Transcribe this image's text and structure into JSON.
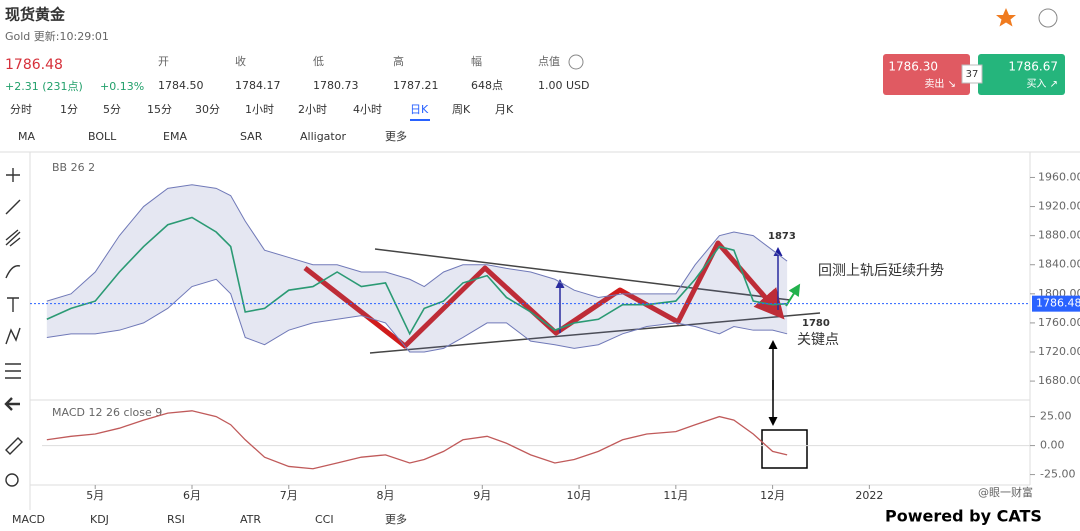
{
  "header": {
    "title": "现货黄金",
    "subtitle": "Gold 更新:10:29:01",
    "price": "1786.48",
    "change": "+2.31 (231点)",
    "change_pct": "+0.13%",
    "stats": [
      {
        "label": "开",
        "value": "1784.50"
      },
      {
        "label": "收",
        "value": "1784.17"
      },
      {
        "label": "低",
        "value": "1780.73"
      },
      {
        "label": "高",
        "value": "1787.21"
      },
      {
        "label": "幅",
        "value": "648点"
      },
      {
        "label": "点值",
        "value": "1.00 USD"
      }
    ],
    "sell": {
      "price": "1786.30",
      "label": "卖出 ↘"
    },
    "spread": "37",
    "buy": {
      "price": "1786.67",
      "label": "买入 ↗"
    }
  },
  "timeframes": [
    "分时",
    "1分",
    "5分",
    "15分",
    "30分",
    "1小时",
    "2小时",
    "4小时",
    "日K",
    "周K",
    "月K"
  ],
  "indicators": [
    "MA",
    "BOLL",
    "EMA",
    "SAR",
    "Alligator",
    "更多"
  ],
  "bottom_indicators": [
    "MACD",
    "KDJ",
    "RSI",
    "ATR",
    "CCI",
    "更多"
  ],
  "footer": {
    "watermark": "@眼一财富",
    "powered": "Powered by CATS"
  },
  "chart_data": {
    "type": "line",
    "label": "BB  26 2",
    "x": [
      4.5,
      4.75,
      5.0,
      5.25,
      5.5,
      5.75,
      6.0,
      6.25,
      6.4,
      6.55,
      6.75,
      7.0,
      7.25,
      7.5,
      7.75,
      8.0,
      8.25,
      8.4,
      8.6,
      8.8,
      9.05,
      9.25,
      9.5,
      9.75,
      9.95,
      10.2,
      10.45,
      10.7,
      11.0,
      11.2,
      11.45,
      11.6,
      11.8,
      12.0,
      12.15
    ],
    "close": [
      1765,
      1780,
      1790,
      1830,
      1865,
      1895,
      1905,
      1885,
      1865,
      1775,
      1780,
      1805,
      1810,
      1830,
      1810,
      1815,
      1745,
      1780,
      1790,
      1815,
      1825,
      1795,
      1775,
      1750,
      1760,
      1765,
      1785,
      1785,
      1790,
      1820,
      1865,
      1860,
      1790,
      1785,
      1786.48
    ],
    "upper": [
      1790,
      1800,
      1830,
      1880,
      1920,
      1945,
      1950,
      1945,
      1935,
      1900,
      1860,
      1850,
      1840,
      1840,
      1830,
      1830,
      1820,
      1810,
      1830,
      1840,
      1840,
      1835,
      1830,
      1820,
      1805,
      1795,
      1800,
      1800,
      1800,
      1840,
      1880,
      1885,
      1880,
      1860,
      1845
    ],
    "lower": [
      1740,
      1745,
      1745,
      1750,
      1760,
      1780,
      1810,
      1820,
      1800,
      1740,
      1730,
      1750,
      1760,
      1765,
      1770,
      1760,
      1720,
      1720,
      1725,
      1740,
      1760,
      1760,
      1735,
      1730,
      1725,
      1730,
      1745,
      1755,
      1760,
      1755,
      1745,
      1755,
      1750,
      1750,
      1745
    ],
    "line_color": "#2b9a74",
    "band_color": "#7079b8",
    "last_price": {
      "value": 1786.48,
      "label": "1786.48"
    },
    "xlim": [
      4.45,
      14.66
    ],
    "ylim": [
      1654,
      1984
    ],
    "xticks": [
      {
        "value": 5,
        "label": "5月"
      },
      {
        "value": 6,
        "label": "6月"
      },
      {
        "value": 7,
        "label": "7月"
      },
      {
        "value": 8,
        "label": "8月"
      },
      {
        "value": 9,
        "label": "9月"
      },
      {
        "value": 10,
        "label": "10月"
      },
      {
        "value": 11,
        "label": "11月"
      },
      {
        "value": 12,
        "label": "12月"
      },
      {
        "value": 13,
        "label": "2022"
      }
    ],
    "yticks": [
      {
        "value": 1960,
        "label": "1960.00"
      },
      {
        "value": 1920,
        "label": "1920.00"
      },
      {
        "value": 1880,
        "label": "1880.00"
      },
      {
        "value": 1840,
        "label": "1840.00"
      },
      {
        "value": 1800,
        "label": "1800.00"
      },
      {
        "value": 1760,
        "label": "1760.00"
      },
      {
        "value": 1720,
        "label": "1720.00"
      },
      {
        "value": 1680,
        "label": "1680.00"
      }
    ],
    "annotations": [
      "1873",
      "回测上轨后延续升势",
      "1780",
      "关键点"
    ],
    "macd": {
      "label": "MACD 12 26 close 9",
      "color": "#c05a5a",
      "values": [
        5,
        8,
        10,
        15,
        22,
        28,
        30,
        25,
        18,
        5,
        -10,
        -18,
        -20,
        -15,
        -10,
        -8,
        -15,
        -12,
        -5,
        5,
        8,
        2,
        -8,
        -15,
        -12,
        -5,
        5,
        10,
        12,
        18,
        25,
        22,
        10,
        -5,
        -8
      ],
      "ylim": [
        -34,
        35
      ],
      "yticks": [
        {
          "value": 25,
          "label": "25.00"
        },
        {
          "value": 0,
          "label": "0.00"
        },
        {
          "value": -25,
          "label": "-25.00"
        }
      ]
    }
  }
}
